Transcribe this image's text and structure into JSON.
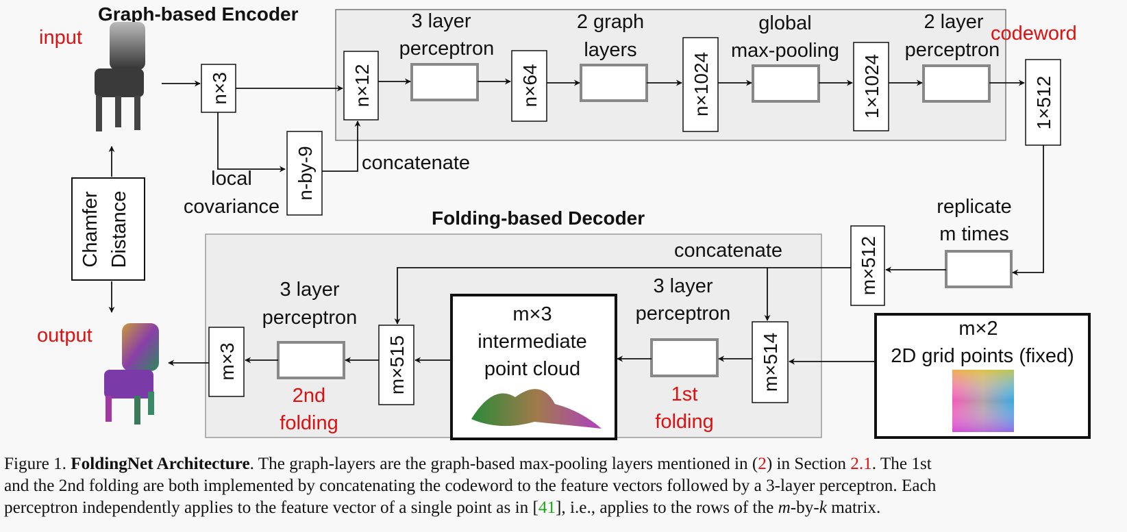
{
  "encoder": {
    "title": "Graph-based Encoder",
    "input_label": "input",
    "codeword_label": "codeword",
    "input_dim": "n×3",
    "local_cov_dim": "n-by-9",
    "local_covariance_line1": "local",
    "local_covariance_line2": "covariance",
    "concatenate_label": "concatenate",
    "stage_dims": [
      "n×12",
      "n×64",
      "n×1024",
      "1×1024"
    ],
    "block_labels": [
      [
        "3 layer",
        "perceptron"
      ],
      [
        "2 graph",
        "layers"
      ],
      [
        "global",
        "max-pooling"
      ],
      [
        "2 layer",
        "perceptron"
      ]
    ],
    "codeword_dim": "1×512"
  },
  "chamfer": {
    "line1": "Chamfer",
    "line2": "Distance"
  },
  "decoder": {
    "title": "Folding-based Decoder",
    "output_label": "output",
    "replicate_line1": "replicate",
    "replicate_line2": "m times",
    "replicated_dim": "m×512",
    "concatenate_label": "concatenate",
    "grid_line1": "m×2",
    "grid_line2": "2D grid points (fixed)",
    "concat1_dim": "m×514",
    "perceptron1_line1": "3 layer",
    "perceptron1_line2": "perceptron",
    "folding1_line1": "1st",
    "folding1_line2": "folding",
    "intermediate_line1": "m×3",
    "intermediate_line2": "intermediate",
    "intermediate_line3": "point cloud",
    "concat2_dim": "m×515",
    "perceptron2_line1": "3 layer",
    "perceptron2_line2": "perceptron",
    "folding2_line1": "2nd",
    "folding2_line2": "folding",
    "output_dim": "m×3"
  },
  "caption": {
    "fig_label": "Figure 1.",
    "title": "FoldingNet Architecture",
    "line1_a": ". The graph-layers are the graph-based max-pooling layers mentioned in (",
    "ref_eq": "2",
    "line1_b": ") in Section ",
    "ref_section": "2.1",
    "line1_c": ". The 1st",
    "line2": "and the 2nd folding are both implemented by concatenating the codeword to the feature vectors followed by a 3-layer perceptron. Each",
    "line3_a": "perceptron independently applies to the feature vector of a single point as in [",
    "ref_cite": "41",
    "line3_b": "], i.e., applies to the rows of the ",
    "math_m": "m",
    "line3_c": "-by-",
    "math_k": "k",
    "line3_d": " matrix."
  },
  "colors": {
    "label_red": "#e01010",
    "panel_gray": "#ededed",
    "block_border": "#888888",
    "citation_green": "#1aa81a"
  }
}
